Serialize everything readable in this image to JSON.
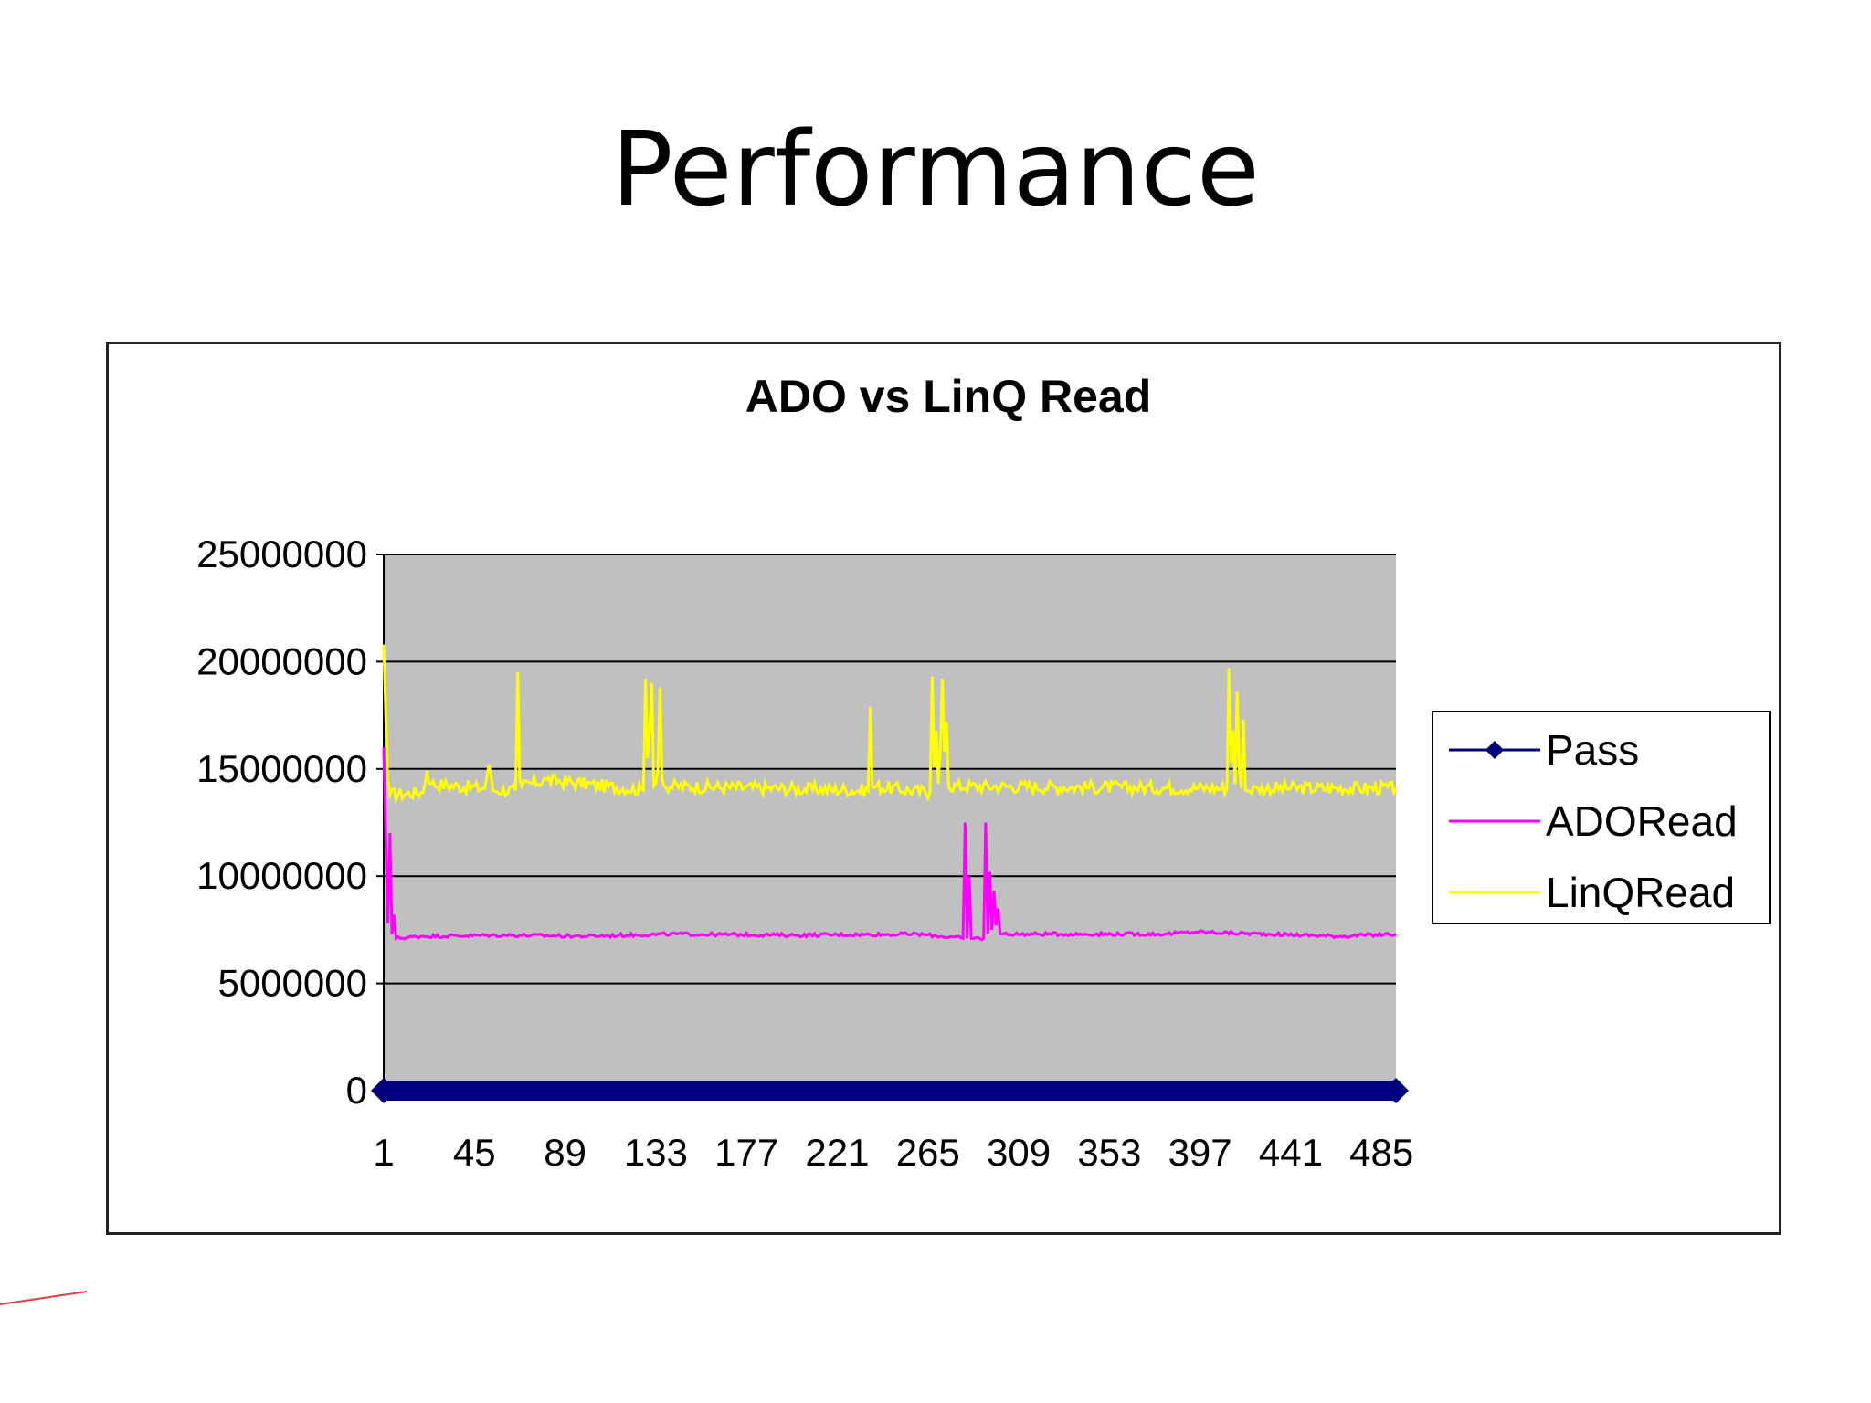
{
  "slide": {
    "title": "Performance"
  },
  "chart_data": {
    "type": "line",
    "title": "ADO vs LinQ Read",
    "xlabel": "",
    "ylabel": "",
    "ylim": [
      0,
      25000000
    ],
    "yticks": [
      "25000000",
      "20000000",
      "15000000",
      "10000000",
      "5000000",
      "0"
    ],
    "yticks_values": [
      25000000,
      20000000,
      15000000,
      10000000,
      5000000,
      0
    ],
    "xticks": [
      "1",
      "45",
      "89",
      "133",
      "177",
      "221",
      "265",
      "309",
      "353",
      "397",
      "441",
      "485"
    ],
    "xticks_values": [
      1,
      45,
      89,
      133,
      177,
      221,
      265,
      309,
      353,
      397,
      441,
      485
    ],
    "xlim": [
      1,
      492
    ],
    "grid": true,
    "plot_background": "#c0c0c0",
    "legend_position": "right",
    "series": [
      {
        "name": "Pass",
        "color": "#000080",
        "marker": "diamond",
        "baseline": 0,
        "points": [
          [
            1,
            0
          ],
          [
            492,
            0
          ]
        ]
      },
      {
        "name": "ADORead",
        "color": "#ff00ff",
        "baseline": 7100000,
        "noise": 80000,
        "points": [
          [
            1,
            16000000
          ],
          [
            2,
            11800000
          ],
          [
            3,
            7800000
          ],
          [
            4,
            12000000
          ],
          [
            5,
            7300000
          ],
          [
            6,
            8200000
          ],
          [
            7,
            7100000
          ],
          [
            20,
            7200000
          ],
          [
            60,
            7250000
          ],
          [
            100,
            7200000
          ],
          [
            140,
            7300000
          ],
          [
            200,
            7250000
          ],
          [
            260,
            7300000
          ],
          [
            282,
            7100000
          ],
          [
            283,
            12500000
          ],
          [
            284,
            7100000
          ],
          [
            285,
            10000000
          ],
          [
            286,
            7100000
          ],
          [
            292,
            7100000
          ],
          [
            293,
            12500000
          ],
          [
            294,
            7300000
          ],
          [
            295,
            10200000
          ],
          [
            296,
            7500000
          ],
          [
            297,
            9300000
          ],
          [
            298,
            7700000
          ],
          [
            299,
            8500000
          ],
          [
            300,
            7300000
          ],
          [
            330,
            7300000
          ],
          [
            380,
            7300000
          ],
          [
            395,
            7400000
          ],
          [
            430,
            7300000
          ],
          [
            465,
            7200000
          ],
          [
            492,
            7300000
          ]
        ]
      },
      {
        "name": "LinQRead",
        "color": "#ffff00",
        "baseline": 13900000,
        "noise": 300000,
        "points": [
          [
            1,
            20800000
          ],
          [
            2,
            17400000
          ],
          [
            3,
            14500000
          ],
          [
            4,
            13800000
          ],
          [
            20,
            13900000
          ],
          [
            22,
            14900000
          ],
          [
            24,
            14300000
          ],
          [
            50,
            14100000
          ],
          [
            52,
            15200000
          ],
          [
            54,
            14000000
          ],
          [
            65,
            14000000
          ],
          [
            66,
            19500000
          ],
          [
            67,
            14500000
          ],
          [
            68,
            14200000
          ],
          [
            80,
            14500000
          ],
          [
            127,
            14000000
          ],
          [
            128,
            19200000
          ],
          [
            129,
            15500000
          ],
          [
            130,
            16800000
          ],
          [
            131,
            19000000
          ],
          [
            132,
            14200000
          ],
          [
            134,
            15000000
          ],
          [
            135,
            18800000
          ],
          [
            136,
            14500000
          ],
          [
            137,
            14200000
          ],
          [
            236,
            14000000
          ],
          [
            237,
            17900000
          ],
          [
            238,
            14200000
          ],
          [
            266,
            13900000
          ],
          [
            267,
            19300000
          ],
          [
            268,
            15100000
          ],
          [
            269,
            16800000
          ],
          [
            270,
            14300000
          ],
          [
            271,
            16000000
          ],
          [
            272,
            19200000
          ],
          [
            273,
            15800000
          ],
          [
            274,
            17200000
          ],
          [
            275,
            14200000
          ],
          [
            410,
            14100000
          ],
          [
            411,
            19700000
          ],
          [
            412,
            15300000
          ],
          [
            413,
            16800000
          ],
          [
            414,
            14300000
          ],
          [
            415,
            18600000
          ],
          [
            416,
            15000000
          ],
          [
            417,
            14100000
          ],
          [
            418,
            17300000
          ],
          [
            419,
            14000000
          ],
          [
            425,
            14100000
          ],
          [
            492,
            14100000
          ]
        ]
      }
    ]
  }
}
